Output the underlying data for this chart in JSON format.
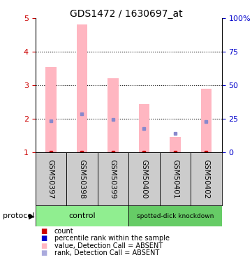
{
  "title": "GDS1472 / 1630697_at",
  "samples": [
    "GSM50397",
    "GSM50398",
    "GSM50399",
    "GSM50400",
    "GSM50401",
    "GSM50402"
  ],
  "pink_bar_values": [
    3.55,
    4.82,
    3.2,
    2.43,
    1.45,
    2.9
  ],
  "blue_marker_values": [
    1.93,
    2.15,
    1.98,
    1.7,
    1.55,
    1.92
  ],
  "ylim": [
    1,
    5
  ],
  "yticks_left": [
    1,
    2,
    3,
    4,
    5
  ],
  "ytick_labels_right": [
    "0",
    "25",
    "50",
    "75",
    "100%"
  ],
  "protocol_groups": [
    {
      "label": "control",
      "start": 0,
      "end": 3,
      "color": "#90EE90"
    },
    {
      "label": "spotted-dick knockdown",
      "start": 3,
      "end": 6,
      "color": "#66CC66"
    }
  ],
  "pink_bar_color": "#FFB6C1",
  "blue_marker_color": "#8888CC",
  "red_marker_color": "#CC0000",
  "sample_bg_color": "#CCCCCC",
  "plot_bg_color": "#FFFFFF",
  "left_tick_color": "#CC0000",
  "right_tick_color": "#0000CC",
  "legend_items": [
    {
      "color": "#CC0000",
      "label": "count"
    },
    {
      "color": "#0000CC",
      "label": "percentile rank within the sample"
    },
    {
      "color": "#FFB6C1",
      "label": "value, Detection Call = ABSENT"
    },
    {
      "color": "#AAAADD",
      "label": "rank, Detection Call = ABSENT"
    }
  ],
  "figsize": [
    3.61,
    3.75
  ],
  "dpi": 100
}
